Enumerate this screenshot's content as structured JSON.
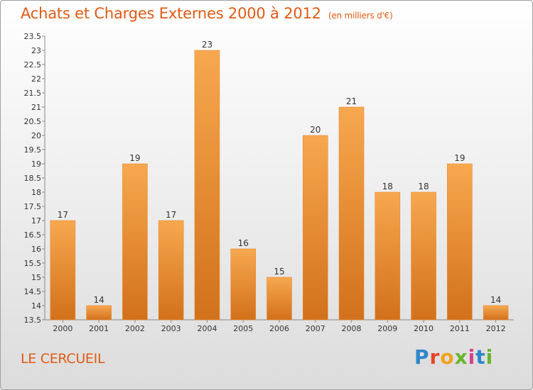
{
  "header": {
    "title": "Achats et Charges Externes 2000 à 2012",
    "unit": "(en milliers d'€)"
  },
  "footer": {
    "commune": "LE CERCUEIL",
    "logo": [
      "P",
      "r",
      "o",
      "x",
      "i",
      "t",
      "i"
    ]
  },
  "colors": {
    "bar_top": "#f7a84f",
    "bar_bottom": "#d2711b",
    "title": "#e05a14"
  },
  "chart_data": {
    "type": "bar",
    "categories": [
      "2000",
      "2001",
      "2002",
      "2003",
      "2004",
      "2005",
      "2006",
      "2007",
      "2008",
      "2009",
      "2010",
      "2011",
      "2012"
    ],
    "values": [
      17,
      14,
      19,
      17,
      23,
      16,
      15,
      20,
      21,
      18,
      18,
      19,
      14
    ],
    "data_labels": [
      "17",
      "14",
      "19",
      "17",
      "23",
      "16",
      "15",
      "20",
      "21",
      "18",
      "18",
      "19",
      "14"
    ],
    "yticks": [
      "13.5",
      "14",
      "14.5",
      "15",
      "15.5",
      "16",
      "16.5",
      "17",
      "17.5",
      "18",
      "18.5",
      "19",
      "19.5",
      "20",
      "20.5",
      "21",
      "21.5",
      "22",
      "22.5",
      "23",
      "23.5"
    ],
    "ylim": [
      13.5,
      23.5
    ],
    "grid": false
  }
}
